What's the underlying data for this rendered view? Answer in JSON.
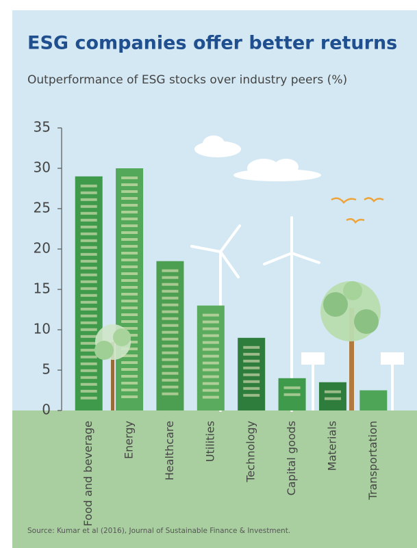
{
  "chart_data": {
    "type": "bar",
    "title": "ESG companies offer better returns",
    "subtitle": "Outperformance of ESG stocks over industry peers (%)",
    "source": "Source: Kumar et al (2016), Journal of Sustainable Finance & Investment.",
    "categories": [
      "Food and beverage",
      "Energy",
      "Healthcare",
      "Utilities",
      "Technology",
      "Capital goods",
      "Materials",
      "Transportation"
    ],
    "values": [
      29,
      30,
      18.5,
      13,
      9,
      4,
      3.5,
      2.5
    ],
    "colors": [
      "#3f9a4c",
      "#54a85a",
      "#4c9e50",
      "#5aab5e",
      "#2f7d3c",
      "#3f9a4c",
      "#2f7d3c",
      "#4ea457"
    ],
    "ylim": [
      0,
      35
    ],
    "yticks": [
      0,
      5,
      10,
      15,
      20,
      25,
      30,
      35
    ]
  }
}
